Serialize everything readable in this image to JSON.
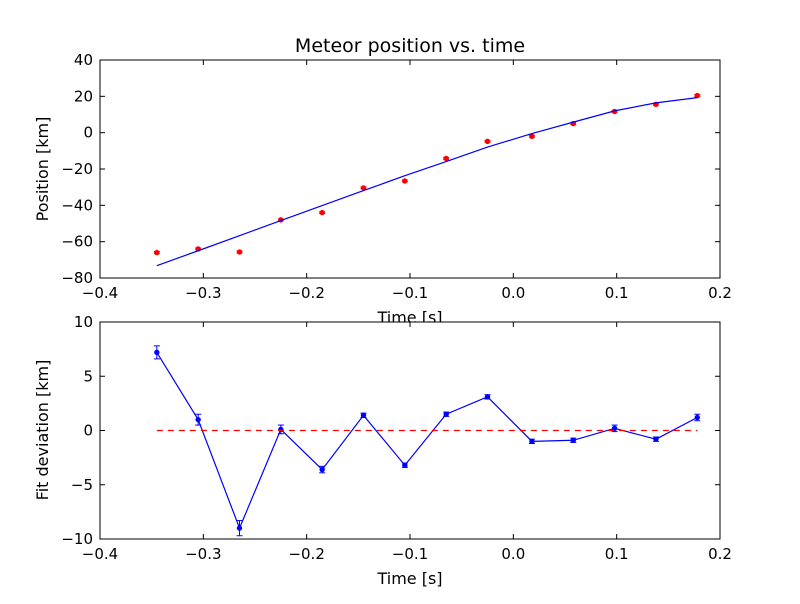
{
  "chart_data": [
    {
      "type": "scatter",
      "title": "Meteor position vs. time",
      "xlabel": "Time [s]",
      "ylabel": "Position [km]",
      "xlim": [
        -0.4,
        0.2
      ],
      "ylim": [
        -80,
        40
      ],
      "xticks": [
        "-0.4",
        "-0.3",
        "-0.2",
        "-0.1",
        "0.0",
        "0.1",
        "0.2"
      ],
      "yticks": [
        "-80",
        "-60",
        "-40",
        "-20",
        "0",
        "20",
        "40"
      ],
      "grid": false,
      "series": [
        {
          "kind": "points-with-errorbars",
          "color": "#ff0000",
          "x": [
            -0.345,
            -0.305,
            -0.265,
            -0.225,
            -0.185,
            -0.145,
            -0.105,
            -0.065,
            -0.025,
            0.018,
            0.058,
            0.098,
            0.138,
            0.178
          ],
          "y": [
            -66.0,
            -64.0,
            -65.7,
            -48.0,
            -44.0,
            -30.4,
            -26.6,
            -14.2,
            -4.8,
            -2.0,
            5.0,
            11.7,
            15.6,
            20.4
          ],
          "err": [
            0.6,
            0.5,
            0.6,
            0.5,
            0.5,
            0.5,
            0.5,
            0.5,
            0.5,
            0.5,
            0.5,
            0.5,
            0.5,
            0.6
          ]
        },
        {
          "kind": "line",
          "color": "#0000ff",
          "x": [
            -0.345,
            -0.305,
            -0.265,
            -0.225,
            -0.185,
            -0.145,
            -0.105,
            -0.065,
            -0.025,
            0.018,
            0.058,
            0.098,
            0.138,
            0.178
          ],
          "y": [
            -73.2,
            -65.0,
            -56.7,
            -48.4,
            -40.1,
            -31.9,
            -23.7,
            -15.9,
            -7.9,
            -0.5,
            5.8,
            12.0,
            16.4,
            19.3
          ]
        }
      ]
    },
    {
      "type": "line",
      "title": "",
      "xlabel": "Time [s]",
      "ylabel": "Fit deviation [km]",
      "xlim": [
        -0.4,
        0.2
      ],
      "ylim": [
        -10,
        10
      ],
      "xticks": [
        "-0.4",
        "-0.3",
        "-0.2",
        "-0.1",
        "0.0",
        "0.1",
        "0.2"
      ],
      "yticks": [
        "-10",
        "-5",
        "0",
        "5",
        "10"
      ],
      "grid": false,
      "series": [
        {
          "kind": "line-points-with-errorbars",
          "color": "#0000ff",
          "x": [
            -0.345,
            -0.305,
            -0.265,
            -0.225,
            -0.185,
            -0.145,
            -0.105,
            -0.065,
            -0.025,
            0.018,
            0.058,
            0.098,
            0.138,
            0.178
          ],
          "y": [
            7.2,
            1.0,
            -9.0,
            0.1,
            -3.6,
            1.4,
            -3.2,
            1.5,
            3.1,
            -1.0,
            -0.9,
            0.2,
            -0.8,
            1.2
          ],
          "err": [
            0.6,
            0.5,
            0.7,
            0.4,
            0.3,
            0.2,
            0.2,
            0.2,
            0.2,
            0.2,
            0.2,
            0.3,
            0.2,
            0.3
          ]
        },
        {
          "kind": "dashed-line",
          "color": "#ff0000",
          "x": [
            -0.345,
            0.178
          ],
          "y": [
            0,
            0
          ]
        }
      ]
    }
  ]
}
